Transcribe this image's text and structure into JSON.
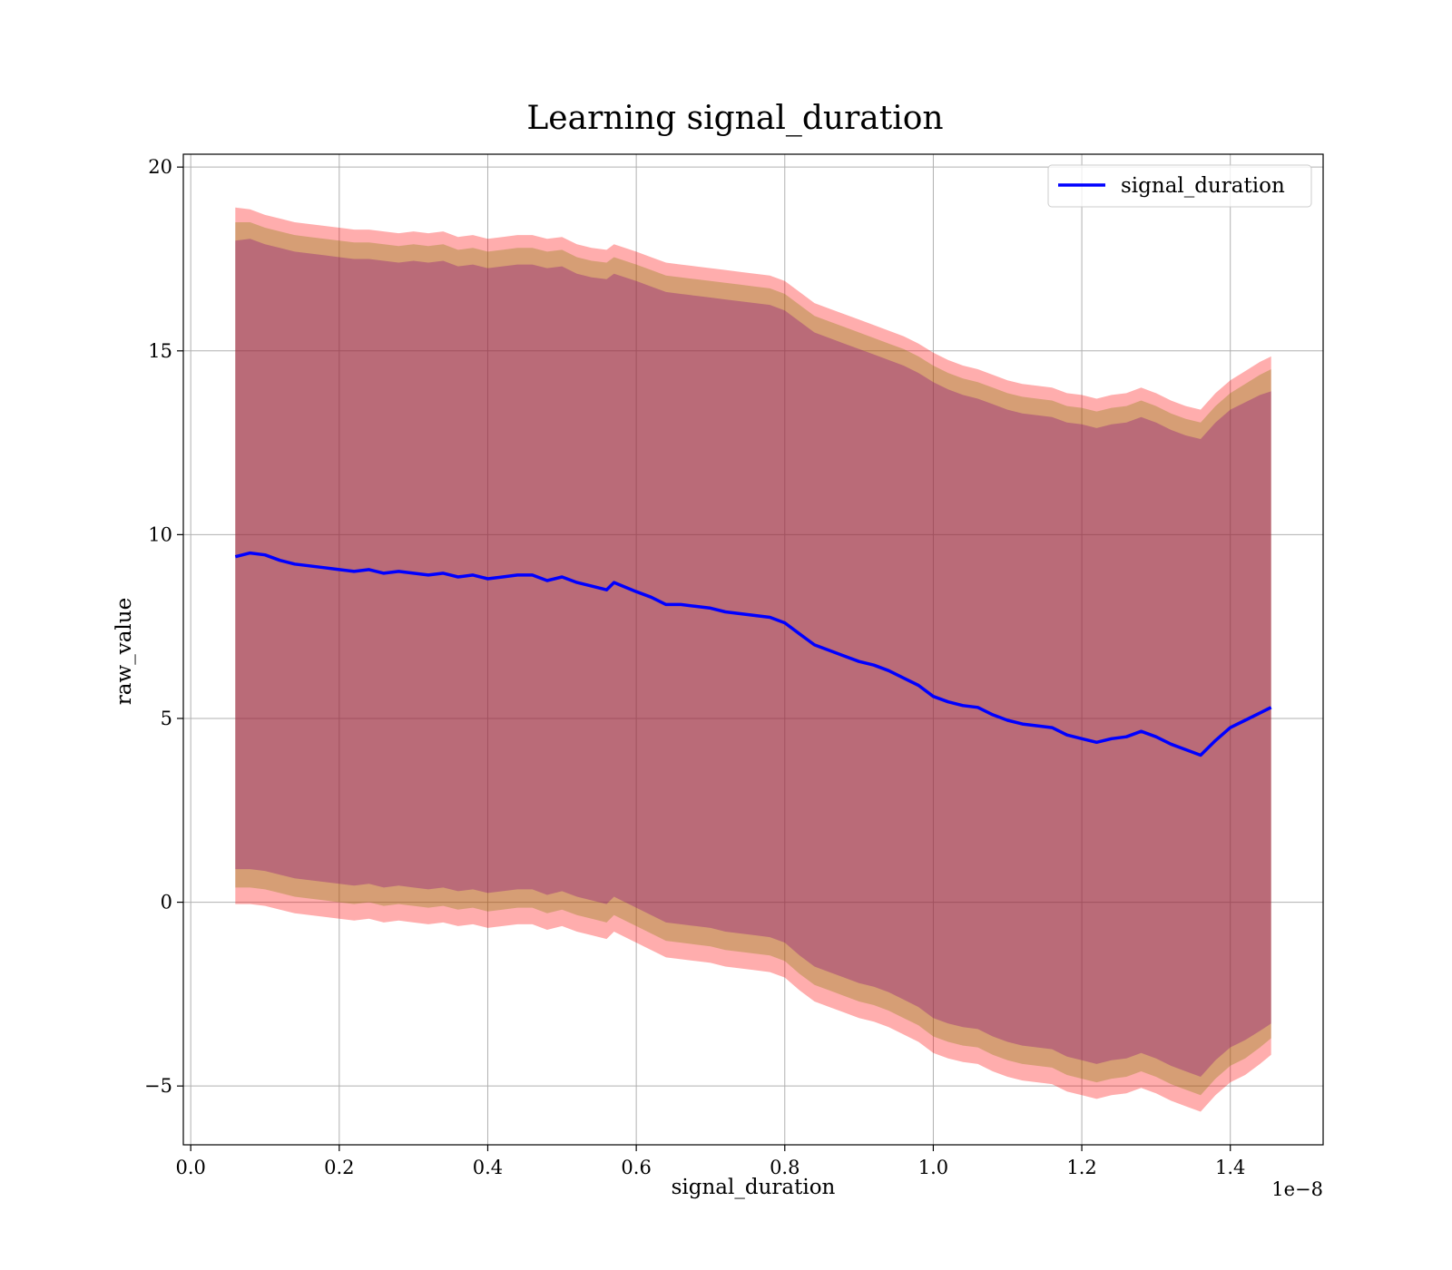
{
  "chart_data": {
    "type": "line",
    "title": "Learning signal_duration",
    "xlabel": "signal_duration",
    "ylabel": "raw_value",
    "x_offset_label": "1e−8",
    "xlim": [
      -0.01,
      1.525
    ],
    "ylim": [
      -6.6,
      20.35
    ],
    "x_ticks": [
      0.0,
      0.2,
      0.4,
      0.6,
      0.8,
      1.0,
      1.2,
      1.4
    ],
    "x_tick_labels": [
      "0.0",
      "0.2",
      "0.4",
      "0.6",
      "0.8",
      "1.0",
      "1.2",
      "1.4"
    ],
    "y_ticks": [
      -5,
      0,
      5,
      10,
      15,
      20
    ],
    "y_tick_labels": [
      "−5",
      "0",
      "5",
      "10",
      "15",
      "20"
    ],
    "grid": true,
    "legend_position": "top-right",
    "series": [
      {
        "name": "signal_duration",
        "color": "#0000ff",
        "x": [
          0.06,
          0.08,
          0.1,
          0.12,
          0.14,
          0.16,
          0.18,
          0.2,
          0.22,
          0.24,
          0.26,
          0.28,
          0.3,
          0.32,
          0.34,
          0.36,
          0.38,
          0.4,
          0.42,
          0.44,
          0.46,
          0.48,
          0.5,
          0.52,
          0.54,
          0.56,
          0.57,
          0.6,
          0.62,
          0.64,
          0.66,
          0.68,
          0.7,
          0.72,
          0.74,
          0.76,
          0.78,
          0.8,
          0.82,
          0.84,
          0.86,
          0.88,
          0.9,
          0.92,
          0.94,
          0.96,
          0.98,
          1.0,
          1.02,
          1.04,
          1.06,
          1.08,
          1.1,
          1.12,
          1.14,
          1.16,
          1.18,
          1.2,
          1.22,
          1.24,
          1.26,
          1.28,
          1.3,
          1.32,
          1.34,
          1.36,
          1.38,
          1.4,
          1.42,
          1.44,
          1.455
        ],
        "y": [
          9.4,
          9.5,
          9.45,
          9.3,
          9.2,
          9.15,
          9.1,
          9.05,
          9.0,
          9.05,
          8.95,
          9.0,
          8.95,
          8.9,
          8.95,
          8.85,
          8.9,
          8.8,
          8.85,
          8.9,
          8.9,
          8.75,
          8.85,
          8.7,
          8.6,
          8.5,
          8.7,
          8.45,
          8.3,
          8.1,
          8.1,
          8.05,
          8.0,
          7.9,
          7.85,
          7.8,
          7.75,
          7.6,
          7.3,
          7.0,
          6.85,
          6.7,
          6.55,
          6.45,
          6.3,
          6.1,
          5.9,
          5.6,
          5.45,
          5.35,
          5.3,
          5.1,
          4.95,
          4.85,
          4.8,
          4.75,
          4.55,
          4.45,
          4.35,
          4.45,
          4.5,
          4.65,
          4.5,
          4.3,
          4.15,
          4.0,
          4.4,
          4.75,
          4.95,
          5.15,
          5.3
        ],
        "band_outer_upper": [
          18.9,
          18.85,
          18.7,
          18.6,
          18.5,
          18.45,
          18.4,
          18.35,
          18.3,
          18.3,
          18.25,
          18.2,
          18.25,
          18.2,
          18.25,
          18.1,
          18.15,
          18.05,
          18.1,
          18.15,
          18.15,
          18.05,
          18.1,
          17.9,
          17.8,
          17.75,
          17.9,
          17.7,
          17.55,
          17.4,
          17.35,
          17.3,
          17.25,
          17.2,
          17.15,
          17.1,
          17.05,
          16.9,
          16.6,
          16.3,
          16.15,
          16.0,
          15.85,
          15.7,
          15.55,
          15.4,
          15.2,
          14.95,
          14.75,
          14.6,
          14.5,
          14.35,
          14.2,
          14.1,
          14.05,
          14.0,
          13.85,
          13.8,
          13.7,
          13.8,
          13.85,
          14.0,
          13.85,
          13.65,
          13.5,
          13.4,
          13.85,
          14.2,
          14.45,
          14.7,
          14.85
        ],
        "band_mid_upper": [
          18.5,
          18.5,
          18.35,
          18.25,
          18.15,
          18.1,
          18.05,
          18.0,
          17.95,
          17.95,
          17.9,
          17.85,
          17.9,
          17.85,
          17.9,
          17.75,
          17.8,
          17.7,
          17.75,
          17.8,
          17.8,
          17.7,
          17.75,
          17.55,
          17.45,
          17.4,
          17.55,
          17.35,
          17.2,
          17.05,
          17.0,
          16.95,
          16.9,
          16.85,
          16.8,
          16.75,
          16.7,
          16.55,
          16.25,
          15.95,
          15.8,
          15.65,
          15.5,
          15.35,
          15.2,
          15.05,
          14.85,
          14.6,
          14.4,
          14.25,
          14.15,
          14.0,
          13.85,
          13.75,
          13.7,
          13.65,
          13.5,
          13.45,
          13.35,
          13.45,
          13.5,
          13.65,
          13.5,
          13.3,
          13.15,
          13.05,
          13.5,
          13.85,
          14.1,
          14.35,
          14.5
        ],
        "band_inner_upper": [
          18.0,
          18.05,
          17.9,
          17.8,
          17.7,
          17.65,
          17.6,
          17.55,
          17.5,
          17.5,
          17.45,
          17.4,
          17.45,
          17.4,
          17.45,
          17.3,
          17.35,
          17.25,
          17.3,
          17.35,
          17.35,
          17.25,
          17.3,
          17.1,
          17.0,
          16.95,
          17.1,
          16.9,
          16.75,
          16.6,
          16.55,
          16.5,
          16.45,
          16.4,
          16.35,
          16.3,
          16.25,
          16.1,
          15.8,
          15.5,
          15.35,
          15.2,
          15.05,
          14.9,
          14.75,
          14.6,
          14.4,
          14.15,
          13.95,
          13.8,
          13.7,
          13.55,
          13.4,
          13.3,
          13.25,
          13.2,
          13.05,
          13.0,
          12.9,
          13.0,
          13.05,
          13.2,
          13.05,
          12.85,
          12.7,
          12.6,
          13.05,
          13.4,
          13.6,
          13.8,
          13.9
        ],
        "band_inner_lower": [
          0.9,
          0.9,
          0.85,
          0.75,
          0.65,
          0.6,
          0.55,
          0.5,
          0.45,
          0.5,
          0.4,
          0.45,
          0.4,
          0.35,
          0.4,
          0.3,
          0.35,
          0.25,
          0.3,
          0.35,
          0.35,
          0.2,
          0.3,
          0.15,
          0.05,
          -0.05,
          0.15,
          -0.15,
          -0.35,
          -0.55,
          -0.6,
          -0.65,
          -0.7,
          -0.8,
          -0.85,
          -0.9,
          -0.95,
          -1.1,
          -1.45,
          -1.75,
          -1.9,
          -2.05,
          -2.2,
          -2.3,
          -2.45,
          -2.65,
          -2.85,
          -3.15,
          -3.3,
          -3.4,
          -3.45,
          -3.65,
          -3.8,
          -3.9,
          -3.95,
          -4.0,
          -4.2,
          -4.3,
          -4.4,
          -4.3,
          -4.25,
          -4.1,
          -4.25,
          -4.45,
          -4.6,
          -4.75,
          -4.3,
          -3.95,
          -3.75,
          -3.5,
          -3.3
        ],
        "band_mid_lower": [
          0.4,
          0.4,
          0.35,
          0.25,
          0.15,
          0.1,
          0.05,
          0.0,
          -0.05,
          0.0,
          -0.1,
          -0.05,
          -0.1,
          -0.15,
          -0.1,
          -0.2,
          -0.15,
          -0.25,
          -0.2,
          -0.15,
          -0.15,
          -0.3,
          -0.2,
          -0.35,
          -0.45,
          -0.55,
          -0.35,
          -0.65,
          -0.85,
          -1.05,
          -1.1,
          -1.15,
          -1.2,
          -1.3,
          -1.35,
          -1.4,
          -1.45,
          -1.6,
          -1.95,
          -2.25,
          -2.4,
          -2.55,
          -2.7,
          -2.8,
          -2.95,
          -3.15,
          -3.35,
          -3.65,
          -3.8,
          -3.9,
          -3.95,
          -4.15,
          -4.3,
          -4.4,
          -4.45,
          -4.5,
          -4.7,
          -4.8,
          -4.9,
          -4.8,
          -4.75,
          -4.6,
          -4.75,
          -4.95,
          -5.1,
          -5.25,
          -4.8,
          -4.45,
          -4.25,
          -3.95,
          -3.7
        ],
        "band_outer_lower": [
          -0.05,
          -0.05,
          -0.1,
          -0.2,
          -0.3,
          -0.35,
          -0.4,
          -0.45,
          -0.5,
          -0.45,
          -0.55,
          -0.5,
          -0.55,
          -0.6,
          -0.55,
          -0.65,
          -0.6,
          -0.7,
          -0.65,
          -0.6,
          -0.6,
          -0.75,
          -0.65,
          -0.8,
          -0.9,
          -1.0,
          -0.8,
          -1.1,
          -1.3,
          -1.5,
          -1.55,
          -1.6,
          -1.65,
          -1.75,
          -1.8,
          -1.85,
          -1.9,
          -2.05,
          -2.4,
          -2.7,
          -2.85,
          -3.0,
          -3.15,
          -3.25,
          -3.4,
          -3.6,
          -3.8,
          -4.1,
          -4.25,
          -4.35,
          -4.4,
          -4.6,
          -4.75,
          -4.85,
          -4.9,
          -4.95,
          -5.15,
          -5.25,
          -5.35,
          -5.25,
          -5.2,
          -5.05,
          -5.2,
          -5.4,
          -5.55,
          -5.7,
          -5.25,
          -4.9,
          -4.7,
          -4.4,
          -4.15
        ]
      }
    ]
  }
}
